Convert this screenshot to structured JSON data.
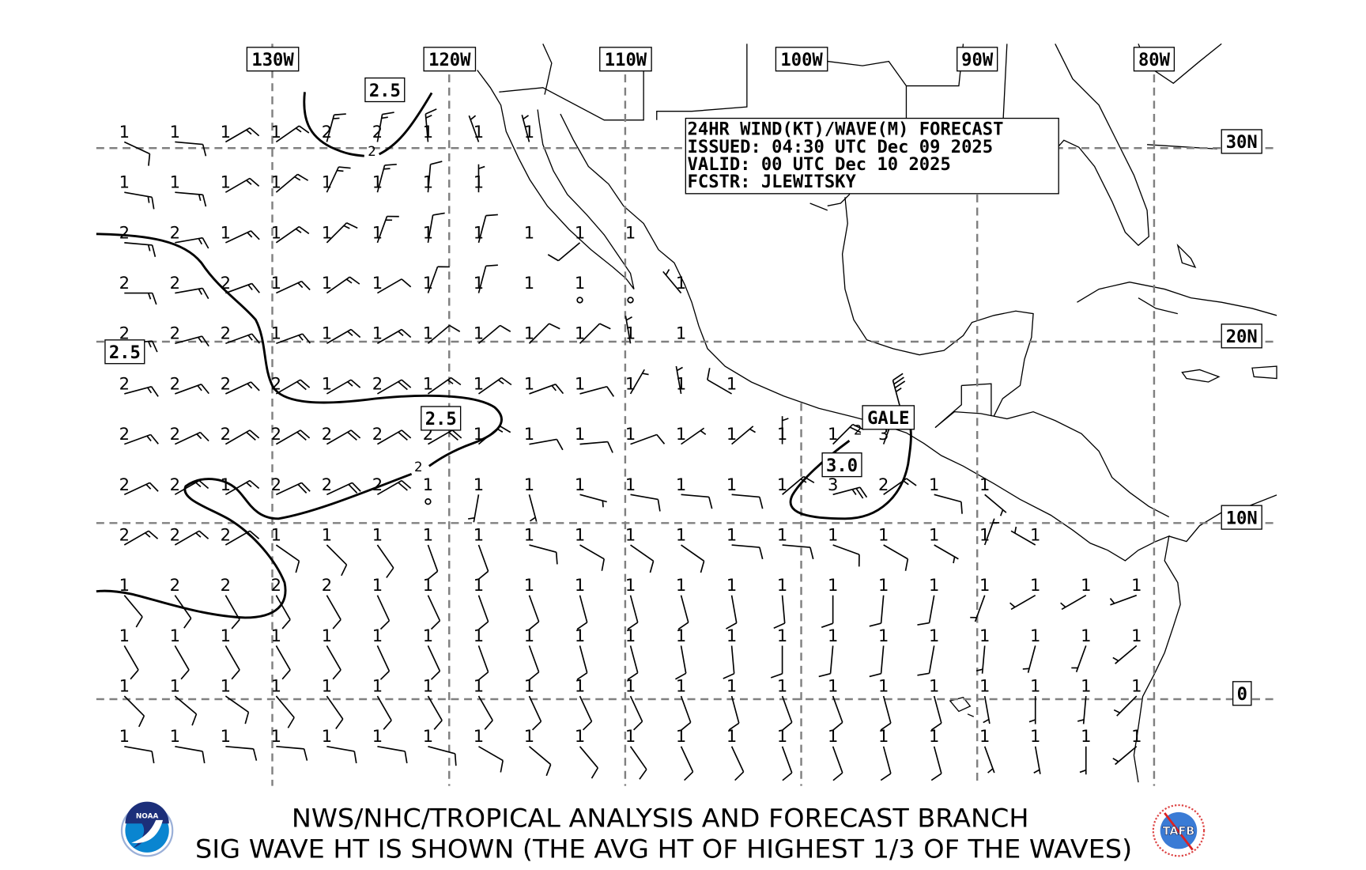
{
  "info_box": {
    "line1": "24HR WIND(KT)/WAVE(M) FORECAST",
    "line2": "ISSUED: 04:30 UTC Dec 09 2025",
    "line3": "VALID: 00 UTC Dec 10 2025",
    "line4": "FCSTR: JLEWITSKY"
  },
  "longitude_labels": [
    "130W",
    "120W",
    "110W",
    "100W",
    "90W",
    "80W"
  ],
  "latitude_labels": [
    "30N",
    "20N",
    "10N",
    "0"
  ],
  "contour_labels": {
    "north": "2.5",
    "west": "2.5",
    "central": "2.5",
    "tehuantepec": "3.0",
    "small_north": "2",
    "small_central": "2",
    "small_tehuantepec": "2"
  },
  "warning_label": "GALE",
  "footer": {
    "line1": "NWS/NHC/TROPICAL ANALYSIS AND FORECAST BRANCH",
    "line2": "SIG WAVE HT IS SHOWN (THE AVG HT OF HIGHEST 1/3 OF THE WAVES)"
  },
  "logos": {
    "left": "NOAA",
    "right": "TAFB"
  },
  "legend_note": "grid cells: [wave height m, wind direction deg (from), wind speed kt]",
  "grid_points": [
    [
      [
        1,
        115,
        10
      ],
      [
        1,
        95,
        10
      ],
      [
        1,
        60,
        15
      ],
      [
        1,
        55,
        15
      ],
      [
        2,
        15,
        15
      ],
      [
        2,
        10,
        15
      ],
      [
        1,
        355,
        15
      ],
      [
        1,
        340,
        5
      ],
      [
        1,
        345,
        5
      ]
    ],
    [
      [
        1,
        100,
        15
      ],
      [
        1,
        95,
        15
      ],
      [
        1,
        60,
        15
      ],
      [
        1,
        50,
        15
      ],
      [
        1,
        25,
        15
      ],
      [
        1,
        15,
        15
      ],
      [
        1,
        5,
        10
      ],
      [
        1,
        0,
        5
      ]
    ],
    [
      [
        2,
        95,
        15
      ],
      [
        2,
        80,
        15
      ],
      [
        1,
        65,
        15
      ],
      [
        1,
        55,
        15
      ],
      [
        1,
        45,
        15
      ],
      [
        1,
        20,
        15
      ],
      [
        1,
        10,
        10
      ],
      [
        1,
        15,
        10
      ],
      [
        1,
        null,
        null
      ],
      [
        1,
        230,
        10
      ],
      [
        1,
        null,
        null
      ]
    ],
    [
      [
        2,
        90,
        15
      ],
      [
        2,
        80,
        15
      ],
      [
        2,
        70,
        15
      ],
      [
        1,
        65,
        15
      ],
      [
        1,
        55,
        15
      ],
      [
        1,
        60,
        10
      ],
      [
        1,
        20,
        10
      ],
      [
        1,
        15,
        10
      ],
      [
        1,
        null,
        null
      ],
      [
        1,
        0,
        0
      ],
      [
        null,
        0,
        0
      ],
      [
        1,
        320,
        5
      ]
    ],
    [
      [
        2,
        85,
        15
      ],
      [
        2,
        75,
        15
      ],
      [
        2,
        70,
        15
      ],
      [
        1,
        70,
        15
      ],
      [
        1,
        60,
        15
      ],
      [
        1,
        60,
        15
      ],
      [
        1,
        50,
        10
      ],
      [
        1,
        50,
        10
      ],
      [
        1,
        45,
        10
      ],
      [
        1,
        45,
        10
      ],
      [
        1,
        350,
        5
      ],
      [
        1,
        null,
        null
      ]
    ],
    [
      [
        2,
        75,
        15
      ],
      [
        2,
        70,
        15
      ],
      [
        2,
        65,
        15
      ],
      [
        2,
        60,
        20
      ],
      [
        1,
        60,
        15
      ],
      [
        2,
        60,
        20
      ],
      [
        1,
        55,
        15
      ],
      [
        1,
        55,
        15
      ],
      [
        1,
        70,
        15
      ],
      [
        1,
        75,
        10
      ],
      [
        1,
        30,
        5
      ],
      [
        1,
        350,
        5
      ],
      [
        1,
        300,
        10
      ]
    ],
    [
      [
        2,
        70,
        15
      ],
      [
        2,
        65,
        15
      ],
      [
        2,
        60,
        20
      ],
      [
        2,
        60,
        20
      ],
      [
        2,
        60,
        20
      ],
      [
        2,
        60,
        20
      ],
      [
        2,
        60,
        20
      ],
      [
        1,
        50,
        15
      ],
      [
        1,
        80,
        10
      ],
      [
        1,
        85,
        10
      ],
      [
        1,
        70,
        10
      ],
      [
        1,
        55,
        5
      ],
      [
        1,
        50,
        5
      ],
      [
        1,
        0,
        5
      ],
      [
        1,
        45,
        20
      ],
      [
        3,
        20,
        20
      ]
    ],
    [
      [
        2,
        65,
        15
      ],
      [
        2,
        60,
        15
      ],
      [
        1,
        60,
        15
      ],
      [
        2,
        65,
        20
      ],
      [
        2,
        65,
        20
      ],
      [
        2,
        60,
        20
      ],
      [
        1,
        0,
        0
      ],
      [
        1,
        190,
        5
      ],
      [
        1,
        165,
        5
      ],
      [
        1,
        105,
        5
      ],
      [
        1,
        100,
        10
      ],
      [
        1,
        95,
        10
      ],
      [
        1,
        95,
        10
      ],
      [
        1,
        50,
        15
      ],
      [
        3,
        75,
        25
      ],
      [
        2,
        55,
        15
      ],
      [
        1,
        105,
        10
      ],
      [
        1,
        130,
        5
      ]
    ],
    [
      [
        2,
        60,
        15
      ],
      [
        2,
        60,
        15
      ],
      [
        2,
        60,
        15
      ],
      [
        1,
        125,
        10
      ],
      [
        1,
        135,
        10
      ],
      [
        1,
        145,
        10
      ],
      [
        1,
        160,
        10
      ],
      [
        1,
        160,
        10
      ],
      [
        1,
        105,
        10
      ],
      [
        1,
        120,
        10
      ],
      [
        1,
        125,
        10
      ],
      [
        1,
        125,
        10
      ],
      [
        1,
        95,
        10
      ],
      [
        1,
        95,
        10
      ],
      [
        1,
        110,
        10
      ],
      [
        1,
        120,
        10
      ],
      [
        1,
        120,
        5
      ],
      [
        1,
        20,
        5
      ],
      [
        1,
        300,
        5
      ]
    ],
    [
      [
        1,
        140,
        10
      ],
      [
        2,
        145,
        10
      ],
      [
        2,
        150,
        10
      ],
      [
        2,
        150,
        10
      ],
      [
        2,
        150,
        10
      ],
      [
        1,
        155,
        10
      ],
      [
        1,
        155,
        10
      ],
      [
        1,
        160,
        10
      ],
      [
        1,
        160,
        10
      ],
      [
        1,
        165,
        10
      ],
      [
        1,
        165,
        10
      ],
      [
        1,
        165,
        10
      ],
      [
        1,
        170,
        10
      ],
      [
        1,
        175,
        10
      ],
      [
        1,
        180,
        10
      ],
      [
        1,
        185,
        10
      ],
      [
        1,
        190,
        10
      ],
      [
        1,
        200,
        5
      ],
      [
        1,
        240,
        5
      ],
      [
        1,
        240,
        5
      ],
      [
        1,
        250,
        5
      ]
    ],
    [
      [
        1,
        150,
        10
      ],
      [
        1,
        150,
        10
      ],
      [
        1,
        150,
        10
      ],
      [
        1,
        150,
        10
      ],
      [
        1,
        150,
        10
      ],
      [
        1,
        155,
        10
      ],
      [
        1,
        155,
        10
      ],
      [
        1,
        160,
        10
      ],
      [
        1,
        160,
        10
      ],
      [
        1,
        165,
        10
      ],
      [
        1,
        165,
        10
      ],
      [
        1,
        170,
        10
      ],
      [
        1,
        175,
        10
      ],
      [
        1,
        180,
        10
      ],
      [
        1,
        185,
        10
      ],
      [
        1,
        185,
        10
      ],
      [
        1,
        190,
        10
      ],
      [
        1,
        185,
        5
      ],
      [
        1,
        195,
        5
      ],
      [
        1,
        200,
        5
      ],
      [
        1,
        230,
        5
      ]
    ],
    [
      [
        1,
        135,
        10
      ],
      [
        1,
        130,
        10
      ],
      [
        1,
        125,
        10
      ],
      [
        1,
        140,
        10
      ],
      [
        1,
        145,
        10
      ],
      [
        1,
        150,
        10
      ],
      [
        1,
        150,
        10
      ],
      [
        1,
        150,
        10
      ],
      [
        1,
        155,
        10
      ],
      [
        1,
        155,
        10
      ],
      [
        1,
        155,
        10
      ],
      [
        1,
        160,
        10
      ],
      [
        1,
        165,
        10
      ],
      [
        1,
        160,
        10
      ],
      [
        1,
        160,
        10
      ],
      [
        1,
        165,
        10
      ],
      [
        1,
        165,
        10
      ],
      [
        1,
        170,
        5
      ],
      [
        1,
        180,
        5
      ],
      [
        1,
        185,
        5
      ],
      [
        1,
        225,
        5
      ]
    ],
    [
      [
        1,
        100,
        10
      ],
      [
        1,
        100,
        10
      ],
      [
        1,
        95,
        10
      ],
      [
        1,
        95,
        10
      ],
      [
        1,
        100,
        10
      ],
      [
        1,
        100,
        10
      ],
      [
        1,
        105,
        10
      ],
      [
        1,
        120,
        10
      ],
      [
        1,
        130,
        10
      ],
      [
        1,
        140,
        10
      ],
      [
        1,
        145,
        10
      ],
      [
        1,
        155,
        10
      ],
      [
        1,
        155,
        10
      ],
      [
        1,
        160,
        10
      ],
      [
        1,
        160,
        10
      ],
      [
        1,
        165,
        10
      ],
      [
        1,
        165,
        10
      ],
      [
        1,
        160,
        5
      ],
      [
        1,
        170,
        5
      ],
      [
        1,
        180,
        5
      ],
      [
        1,
        230,
        5
      ]
    ]
  ],
  "extra_barbs": [
    [
      345,
      35
    ]
  ]
}
